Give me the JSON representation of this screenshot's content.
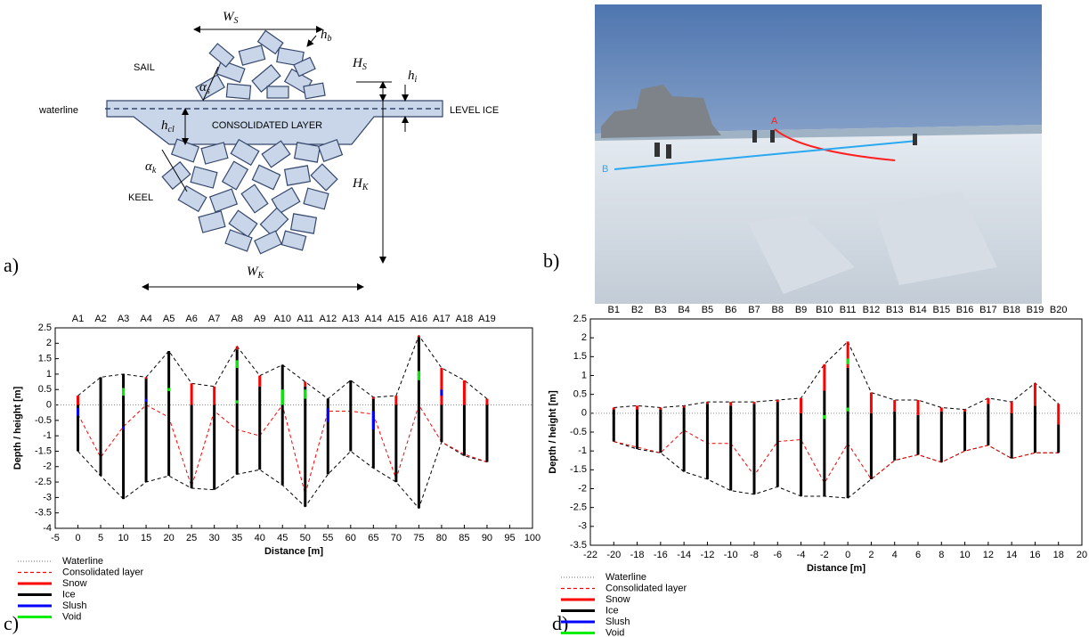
{
  "panels": {
    "a": "a)",
    "b": "b)",
    "c": "c)",
    "d": "d)"
  },
  "diagram": {
    "sail": "SAIL",
    "keel": "KEEL",
    "waterline": "waterline",
    "consolidated_layer": "CONSOLIDATED LAYER",
    "level_ice": "LEVEL ICE",
    "symbols": {
      "ws": {
        "main": "W",
        "sub": "S"
      },
      "hb": {
        "main": "h",
        "sub": "b"
      },
      "alpha_s": {
        "main": "α",
        "sub": "s"
      },
      "hs": {
        "main": "H",
        "sub": "S"
      },
      "hi": {
        "main": "h",
        "sub": "i"
      },
      "hcl": {
        "main": "h",
        "sub": "cl"
      },
      "alpha_k": {
        "main": "α",
        "sub": "k"
      },
      "hk": {
        "main": "H",
        "sub": "K"
      },
      "wk": {
        "main": "W",
        "sub": "K"
      }
    }
  },
  "photo": {
    "markers": [
      "A",
      "B"
    ]
  },
  "chart_data": [
    {
      "type": "profile",
      "x_label": "Distance [m]",
      "y_label": "Depth / height [m]",
      "xlim": [
        -5,
        100
      ],
      "ylim": [
        -4,
        2.5
      ],
      "xticks": [
        -5,
        0,
        5,
        10,
        15,
        20,
        25,
        30,
        35,
        40,
        45,
        50,
        55,
        60,
        65,
        70,
        75,
        80,
        85,
        90,
        95,
        100
      ],
      "yticks": [
        -4,
        -3.5,
        -3,
        -2.5,
        -2,
        -1.5,
        -1,
        -0.5,
        0,
        0.5,
        1,
        1.5,
        2,
        2.5
      ],
      "hole_labels": [
        "A1",
        "A2",
        "A3",
        "A4",
        "A5",
        "A6",
        "A7",
        "A8",
        "A9",
        "A10",
        "A11",
        "A12",
        "A13",
        "A14",
        "A15",
        "A16",
        "A17",
        "A18",
        "A19"
      ],
      "x": [
        0,
        5,
        10,
        15,
        20,
        25,
        30,
        35,
        40,
        45,
        50,
        55,
        60,
        65,
        70,
        75,
        80,
        85,
        90
      ],
      "top": [
        0.3,
        0.9,
        1.0,
        0.9,
        1.75,
        0.7,
        0.6,
        1.9,
        0.95,
        1.3,
        0.75,
        0.2,
        0.8,
        0.25,
        0.3,
        2.25,
        1.2,
        0.8,
        0.2
      ],
      "ice_top": [
        0,
        0.9,
        1.0,
        0.85,
        1.75,
        0,
        0,
        1.8,
        0.6,
        1.3,
        0.6,
        0.2,
        0.8,
        0.2,
        0,
        2.2,
        0,
        0,
        0
      ],
      "bottom": [
        -1.5,
        -2.3,
        -3.05,
        -2.5,
        -2.3,
        -2.7,
        -2.75,
        -2.25,
        -2.1,
        -2.6,
        -3.3,
        -2.25,
        -1.5,
        -2.05,
        -2.5,
        -3.35,
        -1.2,
        -1.65,
        -1.85
      ],
      "outline_color": "#000000",
      "series": [
        {
          "name": "Waterline",
          "color": "#8c8c8c",
          "style": "dotted",
          "value": 0
        },
        {
          "name": "Consolidated layer",
          "color": "#ff0000",
          "style": "dashed",
          "values": [
            -0.3,
            -1.7,
            -0.7,
            0,
            -0.4,
            -2.65,
            -0.2,
            -0.8,
            -1.0,
            0,
            -2.9,
            -0.2,
            -0.2,
            -0.3,
            -2.4,
            0,
            -1.2,
            -1.6,
            -1.85
          ]
        },
        {
          "name": "Snow",
          "color": "#ff0000",
          "style": "solid"
        },
        {
          "name": "Ice",
          "color": "#000000",
          "style": "solid"
        },
        {
          "name": "Slush",
          "color": "#0000ff",
          "style": "solid",
          "values": [
            [
              [
                -0.35,
                -0.1
              ]
            ],
            [],
            [
              [
                -0.8,
                -0.7
              ]
            ],
            [
              [
                0.1,
                0.2
              ]
            ],
            [],
            [],
            [],
            [],
            [],
            [],
            [],
            [
              [
                -0.55,
                -0.1
              ]
            ],
            [],
            [
              [
                -0.8,
                -0.2
              ]
            ],
            [],
            [],
            [
              [
                0.3,
                0.5
              ]
            ],
            [],
            []
          ]
        },
        {
          "name": "Void",
          "color": "#00ee00",
          "style": "solid",
          "values": [
            [],
            [],
            [
              [
                0.3,
                0.55
              ]
            ],
            [],
            [
              [
                0.45,
                0.55
              ]
            ],
            [],
            [],
            [
              [
                1.2,
                1.45
              ],
              [
                0.05,
                0.15
              ]
            ],
            [],
            [
              [
                0,
                0.5
              ]
            ],
            [
              [
                0.2,
                0.5
              ]
            ],
            [],
            [],
            [],
            [],
            [
              [
                0.8,
                1.1
              ]
            ],
            [],
            [],
            []
          ]
        }
      ]
    },
    {
      "type": "profile",
      "x_label": "Distance [m]",
      "y_label": "Depth / height [m]",
      "xlim": [
        -22,
        20
      ],
      "ylim": [
        -3.5,
        2.5
      ],
      "xticks": [
        -22,
        -20,
        -18,
        -16,
        -14,
        -12,
        -10,
        -8,
        -6,
        -4,
        -2,
        0,
        2,
        4,
        6,
        8,
        10,
        12,
        14,
        16,
        18,
        20
      ],
      "yticks": [
        -3.5,
        -3,
        -2.5,
        -2,
        -1.5,
        -1,
        -0.5,
        0,
        0.5,
        1,
        1.5,
        2,
        2.5
      ],
      "hole_labels": [
        "B1",
        "B2",
        "B3",
        "B4",
        "B5",
        "B6",
        "B7",
        "B8",
        "B9",
        "B10",
        "B11",
        "B12",
        "B13",
        "B14",
        "B15",
        "B16",
        "B17",
        "B18",
        "B19",
        "B20"
      ],
      "x": [
        -20,
        -18,
        -16,
        -14,
        -12,
        -10,
        -8,
        -6,
        -4,
        -2,
        0,
        2,
        4,
        6,
        8,
        10,
        12,
        14,
        16,
        18
      ],
      "top": [
        0.15,
        0.2,
        0.15,
        0.2,
        0.3,
        0.3,
        0.3,
        0.35,
        0.4,
        1.3,
        1.9,
        0.55,
        0.35,
        0.35,
        0.15,
        0.1,
        0.4,
        0.3,
        0.8,
        0.25
      ],
      "ice_top": [
        0.1,
        0.1,
        0.1,
        0.15,
        0.25,
        0.2,
        0.25,
        0.3,
        0,
        0.6,
        1.2,
        0,
        0.05,
        -0.05,
        0.05,
        0.05,
        0.25,
        0,
        0.2,
        -0.3
      ],
      "bottom": [
        -0.75,
        -0.95,
        -1.05,
        -1.55,
        -1.75,
        -2.05,
        -2.15,
        -1.95,
        -2.2,
        -2.2,
        -2.25,
        -1.75,
        -1.25,
        -1.1,
        -1.3,
        -1.0,
        -0.85,
        -1.2,
        -1.05,
        -1.05
      ],
      "outline_color": "#000000",
      "series": [
        {
          "name": "Waterline",
          "color": "#8c8c8c",
          "style": "dotted",
          "value": 0
        },
        {
          "name": "Consolidated layer",
          "color": "#ff0000",
          "style": "dashed",
          "values": [
            -0.75,
            -0.9,
            -1.05,
            -0.45,
            -0.8,
            -0.8,
            -1.65,
            -0.75,
            -0.7,
            -1.85,
            -0.8,
            -1.75,
            -1.25,
            -1.1,
            -1.3,
            -1.0,
            -0.85,
            -1.2,
            -1.05,
            -1.05
          ]
        },
        {
          "name": "Snow",
          "color": "#ff0000",
          "style": "solid"
        },
        {
          "name": "Ice",
          "color": "#000000",
          "style": "solid"
        },
        {
          "name": "Slush",
          "color": "#0000ff",
          "style": "solid",
          "values": [
            [],
            [],
            [],
            [],
            [],
            [],
            [],
            [],
            [],
            [],
            [],
            [],
            [],
            [],
            [],
            [],
            [],
            [],
            [],
            []
          ]
        },
        {
          "name": "Void",
          "color": "#00ee00",
          "style": "solid",
          "values": [
            [],
            [],
            [],
            [],
            [],
            [],
            [],
            [],
            [],
            [
              [
                -0.15,
                -0.05
              ]
            ],
            [
              [
                1.3,
                1.45
              ],
              [
                0.05,
                0.15
              ]
            ],
            [],
            [],
            [],
            [],
            [],
            [],
            [],
            [],
            []
          ]
        }
      ]
    }
  ]
}
